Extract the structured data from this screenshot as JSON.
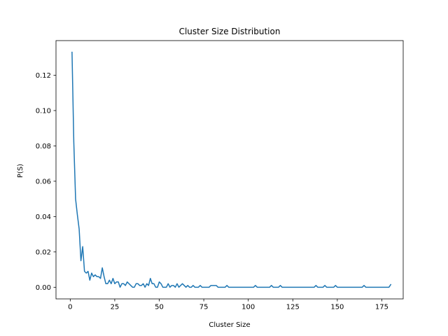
{
  "chart_data": {
    "type": "line",
    "title": "Cluster Size Distribution",
    "xlabel": "Cluster Size",
    "ylabel": "P(S)",
    "xlim": [
      -8,
      187
    ],
    "ylim": [
      -0.0066,
      0.1396
    ],
    "xticks": [
      0,
      25,
      50,
      75,
      100,
      125,
      150,
      175
    ],
    "yticks": [
      0.0,
      0.02,
      0.04,
      0.06,
      0.08,
      0.1,
      0.12
    ],
    "ytick_labels": [
      "0.00",
      "0.02",
      "0.04",
      "0.06",
      "0.08",
      "0.10",
      "0.12"
    ],
    "grid": false,
    "color": "#1f77b4",
    "series": [
      {
        "points": [
          [
            1,
            0.133
          ],
          [
            2,
            0.082
          ],
          [
            3,
            0.05
          ],
          [
            4,
            0.041
          ],
          [
            5,
            0.033
          ],
          [
            6,
            0.015
          ],
          [
            7,
            0.023
          ],
          [
            8,
            0.009
          ],
          [
            9,
            0.008
          ],
          [
            10,
            0.009
          ],
          [
            11,
            0.004
          ],
          [
            12,
            0.008
          ],
          [
            13,
            0.006
          ],
          [
            14,
            0.007
          ],
          [
            15,
            0.006
          ],
          [
            16,
            0.006
          ],
          [
            17,
            0.005
          ],
          [
            18,
            0.011
          ],
          [
            19,
            0.006
          ],
          [
            20,
            0.002
          ],
          [
            21,
            0.002
          ],
          [
            22,
            0.004
          ],
          [
            23,
            0.002
          ],
          [
            24,
            0.005
          ],
          [
            25,
            0.002
          ],
          [
            26,
            0.003
          ],
          [
            27,
            0.003
          ],
          [
            28,
            0.0
          ],
          [
            29,
            0.002
          ],
          [
            30,
            0.002
          ],
          [
            31,
            0.001
          ],
          [
            32,
            0.003
          ],
          [
            33,
            0.002
          ],
          [
            34,
            0.001
          ],
          [
            35,
            0.0
          ],
          [
            36,
            0.0
          ],
          [
            37,
            0.002
          ],
          [
            38,
            0.002
          ],
          [
            39,
            0.001
          ],
          [
            40,
            0.001
          ],
          [
            41,
            0.002
          ],
          [
            42,
            0.0
          ],
          [
            43,
            0.002
          ],
          [
            44,
            0.001
          ],
          [
            45,
            0.005
          ],
          [
            46,
            0.002
          ],
          [
            47,
            0.002
          ],
          [
            48,
            0.0
          ],
          [
            49,
            0.0
          ],
          [
            50,
            0.003
          ],
          [
            51,
            0.002
          ],
          [
            52,
            0.0
          ],
          [
            53,
            0.0
          ],
          [
            54,
            0.0
          ],
          [
            55,
            0.002
          ],
          [
            56,
            0.0
          ],
          [
            57,
            0.001
          ],
          [
            58,
            0.001
          ],
          [
            59,
            0.0
          ],
          [
            60,
            0.002
          ],
          [
            61,
            0.0
          ],
          [
            62,
            0.001
          ],
          [
            63,
            0.002
          ],
          [
            64,
            0.001
          ],
          [
            65,
            0.0
          ],
          [
            66,
            0.001
          ],
          [
            67,
            0.0
          ],
          [
            68,
            0.0
          ],
          [
            69,
            0.001
          ],
          [
            70,
            0.0
          ],
          [
            71,
            0.0
          ],
          [
            72,
            0.0
          ],
          [
            73,
            0.001
          ],
          [
            74,
            0.0
          ],
          [
            75,
            0.0
          ],
          [
            76,
            0.0
          ],
          [
            77,
            0.0
          ],
          [
            78,
            0.0
          ],
          [
            79,
            0.001
          ],
          [
            80,
            0.001
          ],
          [
            81,
            0.001
          ],
          [
            82,
            0.001
          ],
          [
            83,
            0.0
          ],
          [
            84,
            0.0
          ],
          [
            85,
            0.0
          ],
          [
            86,
            0.0
          ],
          [
            87,
            0.0
          ],
          [
            88,
            0.001
          ],
          [
            89,
            0.0
          ],
          [
            90,
            0.0
          ],
          [
            95,
            0.0
          ],
          [
            100,
            0.0
          ],
          [
            103,
            0.0
          ],
          [
            104,
            0.001
          ],
          [
            105,
            0.0
          ],
          [
            110,
            0.0
          ],
          [
            112,
            0.0
          ],
          [
            113,
            0.001
          ],
          [
            114,
            0.0
          ],
          [
            117,
            0.0
          ],
          [
            118,
            0.001
          ],
          [
            119,
            0.0
          ],
          [
            125,
            0.0
          ],
          [
            130,
            0.0
          ],
          [
            137,
            0.0
          ],
          [
            138,
            0.001
          ],
          [
            139,
            0.0
          ],
          [
            142,
            0.0
          ],
          [
            143,
            0.001
          ],
          [
            144,
            0.0
          ],
          [
            148,
            0.0
          ],
          [
            149,
            0.001
          ],
          [
            150,
            0.0
          ],
          [
            155,
            0.0
          ],
          [
            160,
            0.0
          ],
          [
            164,
            0.0
          ],
          [
            165,
            0.001
          ],
          [
            166,
            0.0
          ],
          [
            170,
            0.0
          ],
          [
            175,
            0.0
          ],
          [
            179,
            0.0
          ],
          [
            180,
            0.0015
          ]
        ]
      }
    ]
  }
}
